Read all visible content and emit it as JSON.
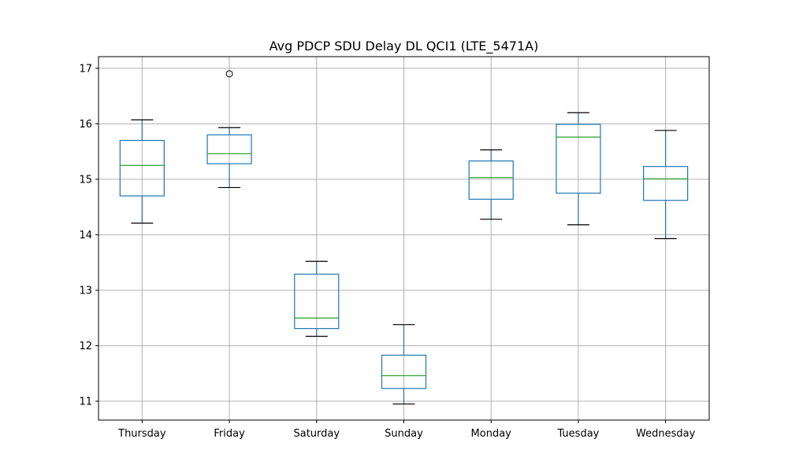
{
  "chart_data": {
    "type": "boxplot",
    "title": "Avg PDCP SDU Delay DL QCI1 (LTE_5471A)",
    "xlabel": "",
    "ylabel": "",
    "categories": [
      "Thursday",
      "Friday",
      "Saturday",
      "Sunday",
      "Monday",
      "Tuesday",
      "Wednesday"
    ],
    "boxes": [
      {
        "category": "Thursday",
        "whislo": 14.21,
        "q1": 14.7,
        "med": 15.25,
        "q3": 15.7,
        "whishi": 16.07,
        "fliers": []
      },
      {
        "category": "Friday",
        "whislo": 14.85,
        "q1": 15.28,
        "med": 15.46,
        "q3": 15.8,
        "whishi": 15.93,
        "fliers": [
          16.9
        ]
      },
      {
        "category": "Saturday",
        "whislo": 12.17,
        "q1": 12.31,
        "med": 12.5,
        "q3": 13.29,
        "whishi": 13.52,
        "fliers": []
      },
      {
        "category": "Sunday",
        "whislo": 10.95,
        "q1": 11.23,
        "med": 11.46,
        "q3": 11.83,
        "whishi": 12.38,
        "fliers": []
      },
      {
        "category": "Monday",
        "whislo": 14.28,
        "q1": 14.64,
        "med": 15.03,
        "q3": 15.33,
        "whishi": 15.53,
        "fliers": []
      },
      {
        "category": "Tuesday",
        "whislo": 14.18,
        "q1": 14.75,
        "med": 15.76,
        "q3": 15.99,
        "whishi": 16.2,
        "fliers": []
      },
      {
        "category": "Wednesday",
        "whislo": 13.93,
        "q1": 14.62,
        "med": 15.01,
        "q3": 15.23,
        "whishi": 15.88,
        "fliers": []
      }
    ],
    "yticks": [
      11,
      12,
      13,
      14,
      15,
      16,
      17
    ],
    "ylim": [
      10.66,
      17.21
    ],
    "grid": true,
    "colors": {
      "box": "#1f77b4",
      "median": "#2ca02c",
      "whisker_cap": "#000000",
      "grid": "#b0b0b0",
      "flier": "#000000"
    }
  }
}
